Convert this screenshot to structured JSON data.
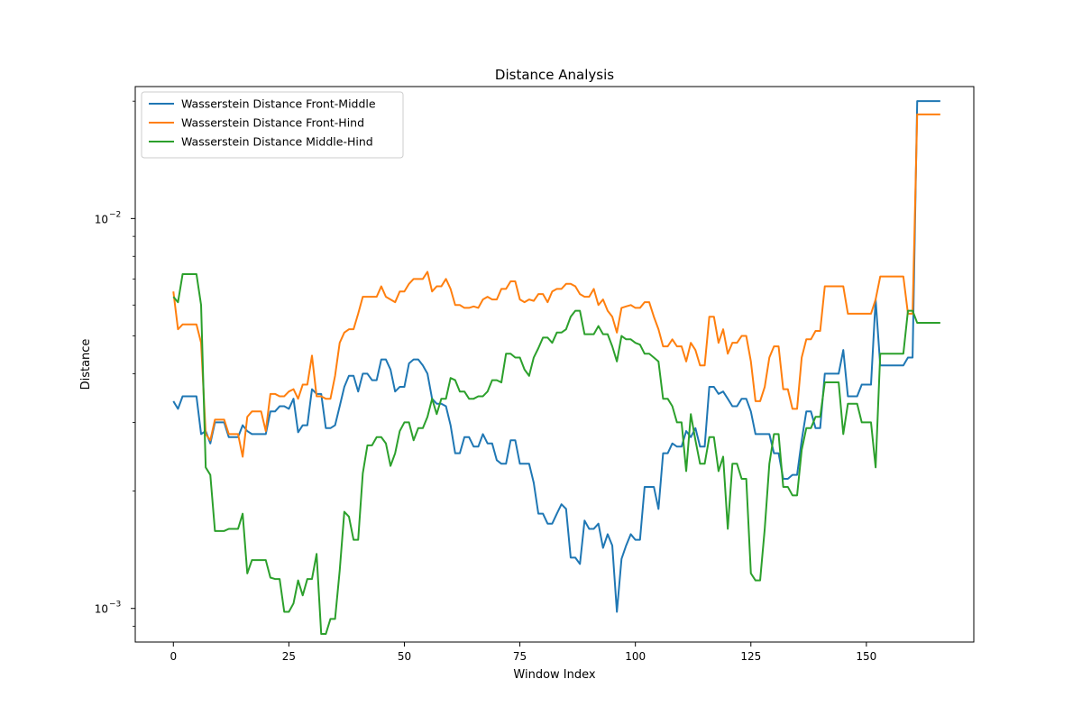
{
  "chart_data": {
    "type": "line",
    "title": "Distance Analysis",
    "xlabel": "Window Index",
    "ylabel": "Distance",
    "yscale": "log",
    "xlim": [
      -8.25,
      173.25
    ],
    "ylim": [
      0.00082,
      0.0218
    ],
    "x_ticks": [
      {
        "value": 0,
        "label": "0"
      },
      {
        "value": 25,
        "label": "25"
      },
      {
        "value": 50,
        "label": "50"
      },
      {
        "value": 75,
        "label": "75"
      },
      {
        "value": 100,
        "label": "100"
      },
      {
        "value": 125,
        "label": "125"
      },
      {
        "value": 150,
        "label": "150"
      }
    ],
    "y_major_ticks": [
      {
        "value": 0.001,
        "base": "10",
        "exp": "−3"
      },
      {
        "value": 0.01,
        "base": "10",
        "exp": "−2"
      }
    ],
    "y_minor_ticks": [
      0.0009,
      0.002,
      0.003,
      0.004,
      0.005,
      0.006,
      0.007,
      0.008,
      0.009,
      0.02
    ],
    "grid": false,
    "legend_position": "top-left",
    "x_start": 0,
    "series": [
      {
        "name": "Wasserstein Distance Front-Middle",
        "color": "#1f77b4",
        "values": [
          0.0034,
          0.00325,
          0.0035,
          0.0035,
          0.0035,
          0.0035,
          0.0028,
          0.00285,
          0.00265,
          0.003,
          0.003,
          0.003,
          0.00275,
          0.00275,
          0.00275,
          0.00295,
          0.00285,
          0.0028,
          0.0028,
          0.0028,
          0.0028,
          0.0032,
          0.0032,
          0.0033,
          0.0033,
          0.00325,
          0.00345,
          0.00283,
          0.00295,
          0.00295,
          0.00365,
          0.00355,
          0.00355,
          0.0029,
          0.0029,
          0.00295,
          0.0033,
          0.0037,
          0.00395,
          0.00395,
          0.0036,
          0.004,
          0.004,
          0.00385,
          0.00385,
          0.00435,
          0.00435,
          0.0041,
          0.0036,
          0.0037,
          0.0037,
          0.00425,
          0.00435,
          0.00435,
          0.0042,
          0.004,
          0.00345,
          0.00335,
          0.00335,
          0.0033,
          0.00295,
          0.0025,
          0.0025,
          0.00275,
          0.00275,
          0.0026,
          0.0026,
          0.0028,
          0.00265,
          0.00265,
          0.0024,
          0.00235,
          0.00235,
          0.0027,
          0.0027,
          0.00235,
          0.00235,
          0.00235,
          0.0021,
          0.00175,
          0.00175,
          0.00165,
          0.00165,
          0.00175,
          0.00185,
          0.0018,
          0.00135,
          0.00135,
          0.0013,
          0.00168,
          0.0016,
          0.0016,
          0.00165,
          0.00143,
          0.00155,
          0.00145,
          0.00098,
          0.00134,
          0.00145,
          0.00155,
          0.0015,
          0.0015,
          0.00205,
          0.00205,
          0.00205,
          0.0018,
          0.0025,
          0.0025,
          0.00265,
          0.0026,
          0.0026,
          0.00285,
          0.00275,
          0.0029,
          0.0026,
          0.0026,
          0.0037,
          0.0037,
          0.00355,
          0.0036,
          0.00345,
          0.0033,
          0.0033,
          0.00345,
          0.00345,
          0.0032,
          0.0028,
          0.0028,
          0.0028,
          0.0028,
          0.0025,
          0.0025,
          0.00215,
          0.00215,
          0.0022,
          0.0022,
          0.0027,
          0.0032,
          0.0032,
          0.0029,
          0.0029,
          0.004,
          0.004,
          0.004,
          0.004,
          0.0046,
          0.0035,
          0.0035,
          0.0035,
          0.00375,
          0.00375,
          0.00375,
          0.0062,
          0.0042,
          0.0042,
          0.0042,
          0.0042,
          0.0042,
          0.0042,
          0.0044,
          0.0044,
          0.02,
          0.02,
          0.02,
          0.02,
          0.02,
          0.02
        ]
      },
      {
        "name": "Wasserstein Distance Front-Hind",
        "color": "#ff7f0e",
        "values": [
          0.0065,
          0.0052,
          0.00535,
          0.00535,
          0.00535,
          0.00535,
          0.0048,
          0.0028,
          0.0027,
          0.00305,
          0.00305,
          0.00305,
          0.0028,
          0.0028,
          0.0028,
          0.00245,
          0.0031,
          0.0032,
          0.0032,
          0.0032,
          0.00285,
          0.00355,
          0.00355,
          0.0035,
          0.0035,
          0.0036,
          0.00365,
          0.00345,
          0.00375,
          0.00375,
          0.00445,
          0.0035,
          0.0035,
          0.00345,
          0.00345,
          0.00395,
          0.0048,
          0.0051,
          0.0052,
          0.0052,
          0.0057,
          0.0063,
          0.0063,
          0.0063,
          0.0063,
          0.0067,
          0.0063,
          0.0062,
          0.0061,
          0.0065,
          0.0065,
          0.0068,
          0.007,
          0.007,
          0.007,
          0.0073,
          0.0065,
          0.0067,
          0.0067,
          0.007,
          0.0066,
          0.006,
          0.006,
          0.0059,
          0.0059,
          0.00595,
          0.0059,
          0.0062,
          0.0063,
          0.0062,
          0.0062,
          0.0066,
          0.0066,
          0.0069,
          0.0069,
          0.0062,
          0.0061,
          0.0062,
          0.00615,
          0.0064,
          0.0064,
          0.0061,
          0.0065,
          0.0066,
          0.0066,
          0.0068,
          0.0068,
          0.0067,
          0.0064,
          0.0063,
          0.0063,
          0.0066,
          0.006,
          0.0062,
          0.0058,
          0.0056,
          0.0051,
          0.0059,
          0.00595,
          0.006,
          0.0059,
          0.0059,
          0.0061,
          0.0061,
          0.0056,
          0.0052,
          0.0047,
          0.0047,
          0.0049,
          0.0047,
          0.0047,
          0.0043,
          0.0048,
          0.0046,
          0.0042,
          0.0042,
          0.0056,
          0.0056,
          0.0048,
          0.0052,
          0.0045,
          0.0048,
          0.0048,
          0.005,
          0.005,
          0.0043,
          0.0034,
          0.0034,
          0.0037,
          0.0044,
          0.0047,
          0.0047,
          0.00365,
          0.00365,
          0.00325,
          0.00325,
          0.0044,
          0.0049,
          0.0049,
          0.00515,
          0.00515,
          0.0067,
          0.0067,
          0.0067,
          0.0067,
          0.0067,
          0.0057,
          0.0057,
          0.0057,
          0.0057,
          0.0057,
          0.0057,
          0.0062,
          0.0071,
          0.0071,
          0.0071,
          0.0071,
          0.0071,
          0.0071,
          0.0057,
          0.0057,
          0.0185,
          0.0185,
          0.0185,
          0.0185,
          0.0185,
          0.0185
        ]
      },
      {
        "name": "Wasserstein Distance Middle-Hind",
        "color": "#2ca02c",
        "values": [
          0.0063,
          0.0061,
          0.0072,
          0.0072,
          0.0072,
          0.0072,
          0.006,
          0.0023,
          0.0022,
          0.00158,
          0.00158,
          0.00158,
          0.0016,
          0.0016,
          0.0016,
          0.00175,
          0.00123,
          0.00133,
          0.00133,
          0.00133,
          0.00133,
          0.0012,
          0.00119,
          0.00119,
          0.00098,
          0.00098,
          0.00103,
          0.00118,
          0.00108,
          0.00119,
          0.00119,
          0.00138,
          0.00086,
          0.00086,
          0.00094,
          0.00094,
          0.00125,
          0.00177,
          0.00172,
          0.0015,
          0.0015,
          0.00222,
          0.00262,
          0.00262,
          0.00275,
          0.00275,
          0.00265,
          0.00232,
          0.0025,
          0.00285,
          0.003,
          0.003,
          0.0027,
          0.0029,
          0.0029,
          0.0031,
          0.00345,
          0.00315,
          0.00345,
          0.00345,
          0.0039,
          0.00385,
          0.0036,
          0.0036,
          0.00345,
          0.00345,
          0.0035,
          0.0035,
          0.0036,
          0.00385,
          0.00385,
          0.0038,
          0.0045,
          0.0045,
          0.0044,
          0.0044,
          0.0041,
          0.00395,
          0.0044,
          0.00465,
          0.00495,
          0.00495,
          0.0048,
          0.0051,
          0.0051,
          0.0052,
          0.0056,
          0.0058,
          0.0058,
          0.00505,
          0.00505,
          0.00505,
          0.0053,
          0.00505,
          0.00505,
          0.0047,
          0.0043,
          0.005,
          0.0049,
          0.0049,
          0.0048,
          0.00475,
          0.0045,
          0.0045,
          0.0044,
          0.0043,
          0.00345,
          0.00345,
          0.0033,
          0.003,
          0.003,
          0.00225,
          0.00315,
          0.0027,
          0.00235,
          0.00235,
          0.00275,
          0.00275,
          0.00225,
          0.00245,
          0.0016,
          0.00235,
          0.00235,
          0.00215,
          0.00215,
          0.00123,
          0.00118,
          0.00118,
          0.0016,
          0.00235,
          0.0028,
          0.0028,
          0.00205,
          0.00205,
          0.00195,
          0.00195,
          0.00255,
          0.0029,
          0.0029,
          0.0031,
          0.0031,
          0.0038,
          0.0038,
          0.0038,
          0.0038,
          0.0028,
          0.00335,
          0.00335,
          0.00335,
          0.003,
          0.003,
          0.003,
          0.0023,
          0.0045,
          0.0045,
          0.0045,
          0.0045,
          0.0045,
          0.0045,
          0.0058,
          0.0058,
          0.0054,
          0.0054,
          0.0054,
          0.0054,
          0.0054,
          0.0054
        ]
      }
    ]
  }
}
